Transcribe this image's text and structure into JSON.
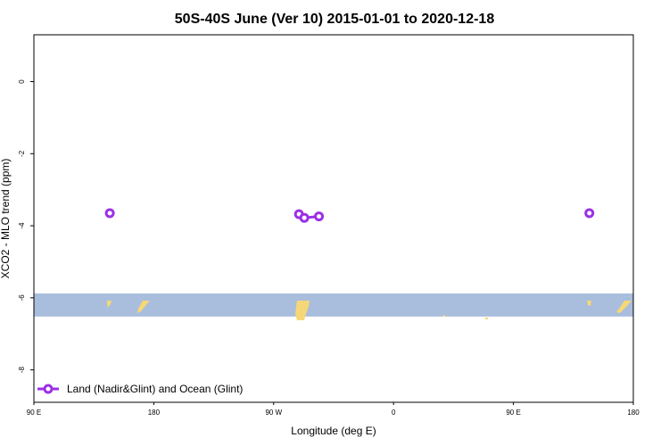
{
  "chart_data": {
    "type": "line",
    "title": "50S-40S June (Ver 10)   2015-01-01 to 2020-12-18",
    "xlabel": "Longitude (deg E)",
    "ylabel": "XCO2 - MLO trend (ppm)",
    "xlim": [
      90,
      450
    ],
    "ylim": [
      -8.9,
      1.3
    ],
    "x_ticks": [
      {
        "value": 90,
        "label": "90 E"
      },
      {
        "value": 180,
        "label": "180"
      },
      {
        "value": 270,
        "label": "90 W"
      },
      {
        "value": 360,
        "label": "0"
      },
      {
        "value": 450,
        "label": "90 E"
      },
      {
        "value": 540,
        "label": "180"
      }
    ],
    "y_ticks": [
      {
        "value": 0,
        "label": "0"
      },
      {
        "value": -2,
        "label": "-2"
      },
      {
        "value": -4,
        "label": "-4"
      },
      {
        "value": -6,
        "label": "-6"
      },
      {
        "value": -8,
        "label": "-8"
      }
    ],
    "series": [
      {
        "name": "Land (Nadir&Glint) and Ocean (Glint)",
        "color": "#9b30e6",
        "points": [
          {
            "x": 147,
            "y": -3.65
          },
          {
            "x": 289,
            "y": -3.68
          },
          {
            "x": 293,
            "y": -3.78
          },
          {
            "x": 304,
            "y": -3.74
          },
          {
            "x": 507,
            "y": -3.65
          }
        ],
        "segments": [
          [
            1,
            2
          ],
          [
            2,
            3
          ]
        ]
      }
    ],
    "map_band": {
      "y_range": [
        -6.52,
        -5.88
      ],
      "ocean_color": "#a9bddc",
      "land_color": "#f5d777"
    },
    "legend_position": "bottom-left"
  }
}
